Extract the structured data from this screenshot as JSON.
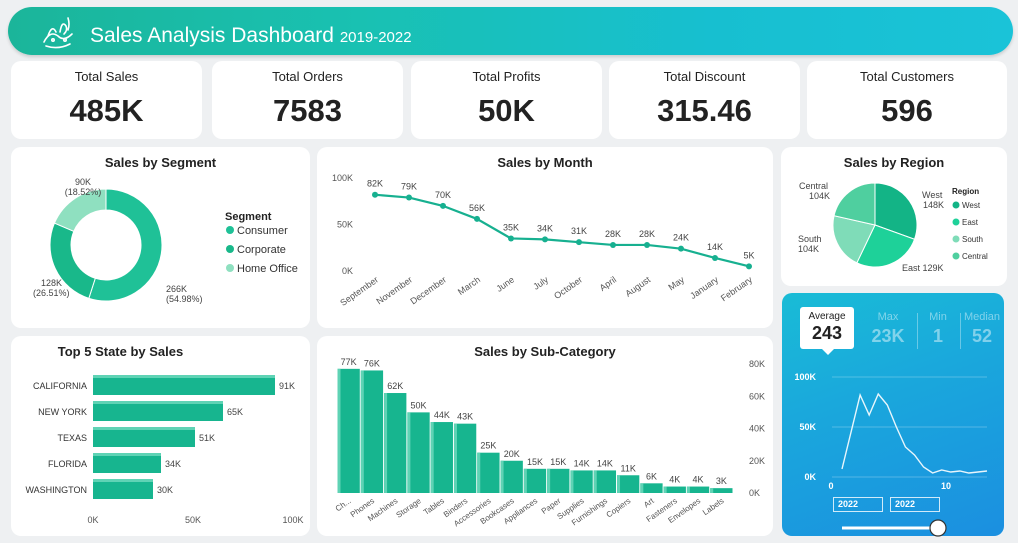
{
  "header": {
    "title": "Sales Analysis Dashboard",
    "years": "2019-2022"
  },
  "kpis": [
    {
      "label": "Total Sales",
      "value": "485K"
    },
    {
      "label": "Total Orders",
      "value": "7583"
    },
    {
      "label": "Total Profits",
      "value": "50K"
    },
    {
      "label": "Total Discount",
      "value": "315.46"
    },
    {
      "label": "Total Customers",
      "value": "596"
    }
  ],
  "segment": {
    "title": "Sales by Segment",
    "legend_title": "Segment",
    "items": [
      {
        "name": "Consumer",
        "value": 266,
        "label": "266K",
        "pct": "(54.98%)",
        "color": "#1fc197"
      },
      {
        "name": "Corporate",
        "value": 128,
        "label": "128K",
        "pct": "(26.51%)",
        "color": "#19b88a"
      },
      {
        "name": "Home Office",
        "value": 90,
        "label": "90K",
        "pct": "(18.52%)",
        "color": "#8fe0c0"
      }
    ]
  },
  "month": {
    "title": "Sales by Month",
    "y_ticks": [
      "100K",
      "50K",
      "0K"
    ],
    "ylim": [
      0,
      100
    ],
    "color": "#17b090",
    "points": [
      {
        "label": "September",
        "value": 82,
        "text": "82K"
      },
      {
        "label": "November",
        "value": 79,
        "text": "79K"
      },
      {
        "label": "December",
        "value": 70,
        "text": "70K"
      },
      {
        "label": "March",
        "value": 56,
        "text": "56K"
      },
      {
        "label": "June",
        "value": 35,
        "text": "35K"
      },
      {
        "label": "July",
        "value": 34,
        "text": "34K"
      },
      {
        "label": "October",
        "value": 31,
        "text": "31K"
      },
      {
        "label": "April",
        "value": 28,
        "text": "28K"
      },
      {
        "label": "August",
        "value": 28,
        "text": "28K"
      },
      {
        "label": "May",
        "value": 24,
        "text": "24K"
      },
      {
        "label": "January",
        "value": 14,
        "text": "14K"
      },
      {
        "label": "February",
        "value": 5,
        "text": "5K"
      }
    ]
  },
  "region": {
    "title": "Sales by Region",
    "legend_title": "Region",
    "items": [
      {
        "name": "West",
        "value": 148,
        "label": "West",
        "vlabel": "148K",
        "color": "#13b486"
      },
      {
        "name": "East",
        "value": 129,
        "label": "East 129K",
        "vlabel": "",
        "color": "#1ed199"
      },
      {
        "name": "South",
        "value": 104,
        "label": "South",
        "vlabel": "104K",
        "color": "#7fdcb8"
      },
      {
        "name": "Central",
        "value": 104,
        "label": "Central",
        "vlabel": "104K",
        "color": "#4fcf9f"
      }
    ]
  },
  "states": {
    "title": "Top 5 State by Sales",
    "x_ticks": [
      "0K",
      "50K",
      "100K"
    ],
    "xlim": [
      0,
      100
    ],
    "color": "#17b58f",
    "items": [
      {
        "name": "CALIFORNIA",
        "value": 91,
        "text": "91K"
      },
      {
        "name": "NEW YORK",
        "value": 65,
        "text": "65K"
      },
      {
        "name": "TEXAS",
        "value": 51,
        "text": "51K"
      },
      {
        "name": "FLORIDA",
        "value": 34,
        "text": "34K"
      },
      {
        "name": "WASHINGTON",
        "value": 30,
        "text": "30K"
      }
    ]
  },
  "subcat": {
    "title": "Sales by Sub-Category",
    "y_ticks": [
      "80K",
      "60K",
      "40K",
      "20K",
      "0K"
    ],
    "ylim": [
      0,
      80
    ],
    "color": "#17b58f",
    "items": [
      {
        "name": "Ch...",
        "value": 77,
        "text": "77K"
      },
      {
        "name": "Phones",
        "value": 76,
        "text": "76K"
      },
      {
        "name": "Machines",
        "value": 62,
        "text": "62K"
      },
      {
        "name": "Storage",
        "value": 50,
        "text": "50K"
      },
      {
        "name": "Tables",
        "value": 44,
        "text": "44K"
      },
      {
        "name": "Binders",
        "value": 43,
        "text": "43K"
      },
      {
        "name": "Accessories",
        "value": 25,
        "text": "25K"
      },
      {
        "name": "Bookcases",
        "value": 20,
        "text": "20K"
      },
      {
        "name": "Appliances",
        "value": 15,
        "text": "15K"
      },
      {
        "name": "Paper",
        "value": 15,
        "text": "15K"
      },
      {
        "name": "Supplies",
        "value": 14,
        "text": "14K"
      },
      {
        "name": "Furnishings",
        "value": 14,
        "text": "14K"
      },
      {
        "name": "Copiers",
        "value": 11,
        "text": "11K"
      },
      {
        "name": "Art",
        "value": 6,
        "text": "6K"
      },
      {
        "name": "Fasteners",
        "value": 4,
        "text": "4K"
      },
      {
        "name": "Envelopes",
        "value": 4,
        "text": "4K"
      },
      {
        "name": "Labels",
        "value": 3,
        "text": "3K"
      }
    ]
  },
  "stats": {
    "average_label": "Average",
    "average_value": "243",
    "max_label": "Max",
    "max_value": "23K",
    "min_label": "Min",
    "min_value": "1",
    "median_label": "Median",
    "median_value": "52",
    "y_ticks": [
      "100K",
      "50K",
      "0K"
    ],
    "x_ticks": [
      "0",
      "10"
    ],
    "ylim": [
      0,
      100
    ],
    "series": [
      8,
      45,
      82,
      62,
      83,
      72,
      50,
      30,
      22,
      10,
      4,
      7,
      5,
      6,
      4,
      5,
      6
    ],
    "date_from": "2022",
    "date_to": "2022",
    "slider": 1.0
  },
  "chart_data": [
    {
      "type": "pie",
      "title": "Sales by Segment",
      "labels": [
        "Consumer",
        "Corporate",
        "Home Office"
      ],
      "values": [
        266,
        128,
        90
      ]
    },
    {
      "type": "line",
      "title": "Sales by Month",
      "categories": [
        "September",
        "November",
        "December",
        "March",
        "June",
        "July",
        "October",
        "April",
        "August",
        "May",
        "January",
        "February"
      ],
      "values": [
        82,
        79,
        70,
        56,
        35,
        34,
        31,
        28,
        28,
        24,
        14,
        5
      ],
      "ylim": [
        0,
        100
      ]
    },
    {
      "type": "pie",
      "title": "Sales by Region",
      "labels": [
        "West",
        "East",
        "South",
        "Central"
      ],
      "values": [
        148,
        129,
        104,
        104
      ]
    },
    {
      "type": "bar",
      "title": "Top 5 State by Sales",
      "categories": [
        "CALIFORNIA",
        "NEW YORK",
        "TEXAS",
        "FLORIDA",
        "WASHINGTON"
      ],
      "values": [
        91,
        65,
        51,
        34,
        30
      ],
      "xlim": [
        0,
        100
      ]
    },
    {
      "type": "bar",
      "title": "Sales by Sub-Category",
      "categories": [
        "Ch...",
        "Phones",
        "Machines",
        "Storage",
        "Tables",
        "Binders",
        "Accessories",
        "Bookcases",
        "Appliances",
        "Paper",
        "Supplies",
        "Furnishings",
        "Copiers",
        "Art",
        "Fasteners",
        "Envelopes",
        "Labels"
      ],
      "values": [
        77,
        76,
        62,
        50,
        44,
        43,
        25,
        20,
        15,
        15,
        14,
        14,
        11,
        6,
        4,
        4,
        3
      ],
      "ylim": [
        0,
        80
      ]
    }
  ]
}
